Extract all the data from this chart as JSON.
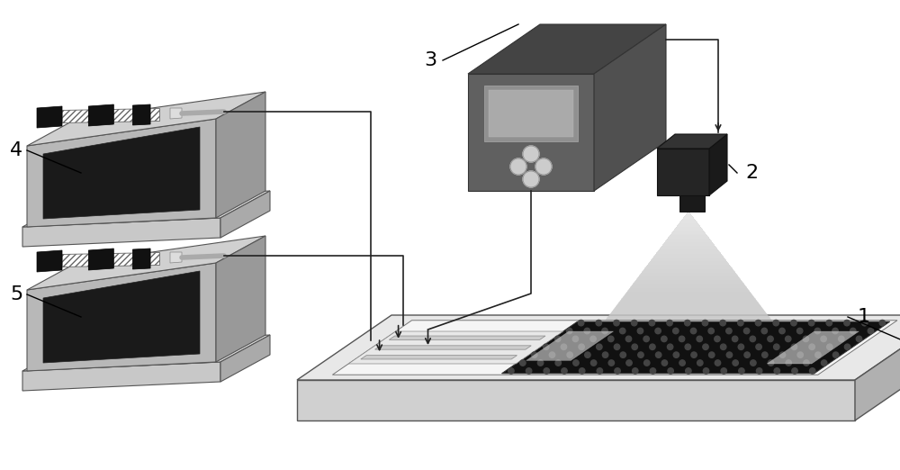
{
  "background_color": "#ffffff",
  "figsize": [
    10.0,
    5.22
  ],
  "dpi": 100,
  "label_fontsize": 16,
  "colors": {
    "white": "#ffffff",
    "black": "#111111",
    "dark_gray": "#3a3a3a",
    "mid_gray": "#606060",
    "pump_face": "#b8b8b8",
    "pump_top": "#d0d0d0",
    "pump_side": "#999999",
    "pump_base_face": "#c8c8c8",
    "pump_base_top": "#dedede",
    "pump_base_side": "#aaaaaa",
    "screen_dark": "#1a1a1a",
    "box3_face": "#606060",
    "box3_top": "#444444",
    "box3_side": "#505050",
    "screen3": "#909090",
    "platform_face": "#d0d0d0",
    "platform_top": "#e8e8e8",
    "platform_side": "#b0b0b0",
    "chip_bg": "#f0f0f0",
    "chip_dark": "#111111",
    "lamp_dark": "#252525"
  }
}
